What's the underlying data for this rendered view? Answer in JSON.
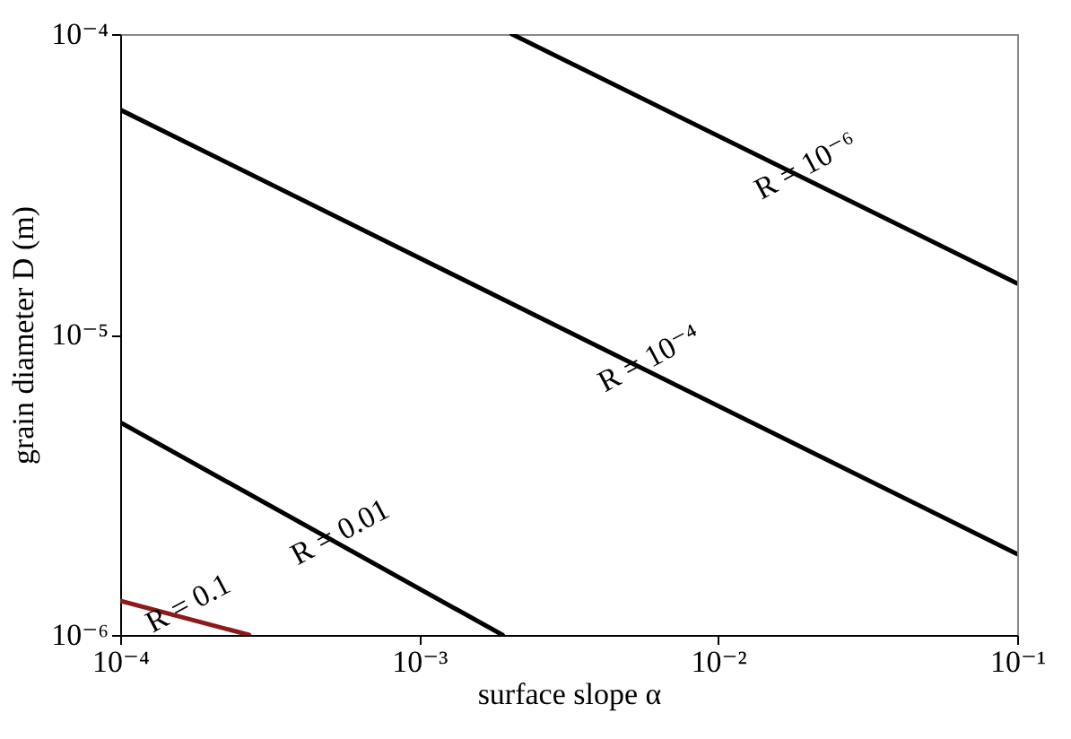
{
  "chart_data": {
    "type": "line",
    "xlabel": "surface slope α",
    "ylabel": "grain diameter D (m)",
    "log": "xy",
    "grid": false,
    "xlim": [
      0.0001,
      0.1
    ],
    "ylim": [
      1e-06,
      0.0001
    ],
    "xticks": [
      {
        "value": 0.0001,
        "label": "10⁻⁴"
      },
      {
        "value": 0.001,
        "label": "10⁻³"
      },
      {
        "value": 0.01,
        "label": "10⁻²"
      },
      {
        "value": 0.1,
        "label": "10⁻¹"
      }
    ],
    "yticks": [
      {
        "value": 1e-06,
        "label": "10⁻⁶"
      },
      {
        "value": 1e-05,
        "label": "10⁻⁵"
      },
      {
        "value": 0.0001,
        "label": "10⁻⁴"
      }
    ],
    "series": [
      {
        "name": "R = 10⁻⁶",
        "color": "#000000",
        "x": [
          0.00204,
          0.1
        ],
        "values": [
          0.0001,
          1.48e-05
        ]
      },
      {
        "name": "R = 10⁻⁴",
        "color": "#000000",
        "x": [
          0.0001,
          0.1
        ],
        "values": [
          5.6e-05,
          1.86e-06
        ]
      },
      {
        "name": "R = 0.01",
        "color": "#000000",
        "x": [
          0.0001,
          0.0019
        ],
        "values": [
          5.1e-06,
          1e-06
        ]
      },
      {
        "name": "R = 0.1",
        "color": "#8b1a1a",
        "x": [
          0.0001,
          0.00027
        ],
        "values": [
          1.3e-06,
          1e-06
        ]
      }
    ]
  }
}
